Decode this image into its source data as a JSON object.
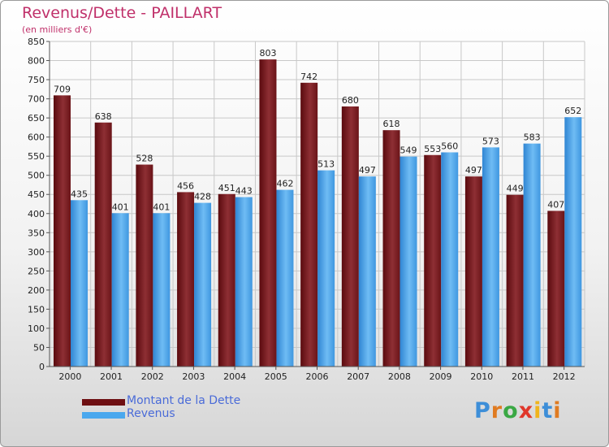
{
  "header": {
    "title": "Revenus/Dette - PAILLART",
    "subtitle": "(en milliers d'€)"
  },
  "legend": {
    "items": [
      {
        "label": "Montant de la Dette",
        "color": "#6e0f12"
      },
      {
        "label": "Revenus",
        "color": "#4aa8ee"
      }
    ]
  },
  "logo": {
    "text": "Proxiti"
  },
  "colors": {
    "debt_dark": "#5a0a0e",
    "debt_light": "#9a3a3f",
    "rev_dark": "#2f85d3",
    "rev_light": "#6fbcf4",
    "title": "#c0306a"
  },
  "chart_data": {
    "type": "bar",
    "categories": [
      "2000",
      "2001",
      "2002",
      "2003",
      "2004",
      "2005",
      "2006",
      "2007",
      "2008",
      "2009",
      "2010",
      "2011",
      "2012"
    ],
    "series": [
      {
        "name": "Montant de la Dette",
        "values": [
          709,
          638,
          528,
          456,
          451,
          803,
          742,
          680,
          618,
          553,
          497,
          449,
          407
        ]
      },
      {
        "name": "Revenus",
        "values": [
          435,
          401,
          401,
          428,
          443,
          462,
          513,
          497,
          549,
          560,
          573,
          583,
          652
        ]
      }
    ],
    "ylim": [
      0,
      850
    ],
    "yticks": [
      0,
      50,
      100,
      150,
      200,
      250,
      300,
      350,
      400,
      450,
      500,
      550,
      600,
      650,
      700,
      750,
      800,
      850
    ],
    "grid": true,
    "legend_position": "bottom-left"
  }
}
